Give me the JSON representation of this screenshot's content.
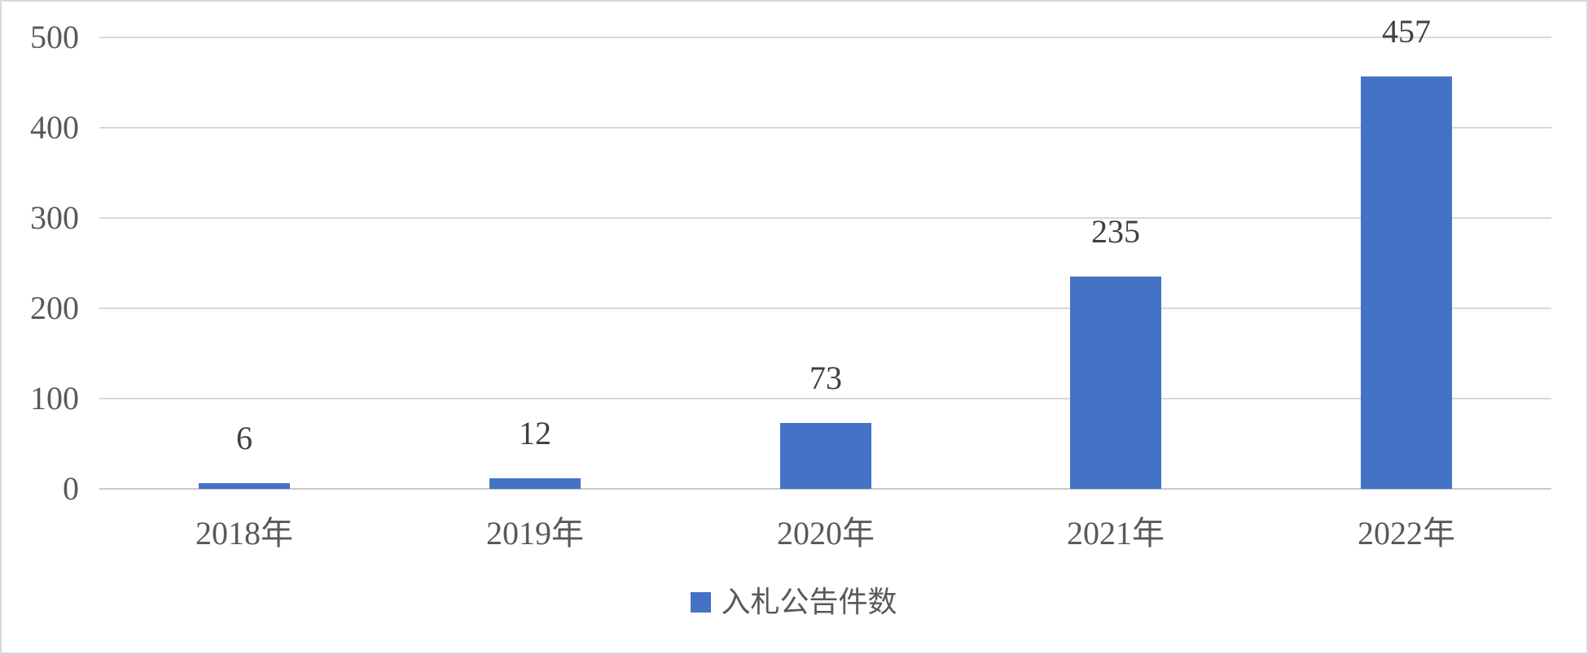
{
  "chart_data": {
    "type": "bar",
    "categories": [
      "2018年",
      "2019年",
      "2020年",
      "2021年",
      "2022年"
    ],
    "series": [
      {
        "name": "入札公告件数",
        "values": [
          6,
          12,
          73,
          235,
          457
        ]
      }
    ],
    "data_labels": [
      "6",
      "12",
      "73",
      "235",
      "457"
    ],
    "title": "",
    "xlabel": "",
    "ylabel": "",
    "ylim": [
      0,
      500
    ],
    "yticks": [
      0,
      100,
      200,
      300,
      400,
      500
    ],
    "grid": true,
    "legend_position": "bottom",
    "colors": {
      "bar": "#4472C4",
      "gridline": "#d9d9d9",
      "axis_line": "#c9c9c9",
      "tick_label": "#595959",
      "data_label": "#404040",
      "border": "#d9d9d9",
      "background": "#ffffff"
    }
  },
  "legend": {
    "label": "入札公告件数"
  }
}
